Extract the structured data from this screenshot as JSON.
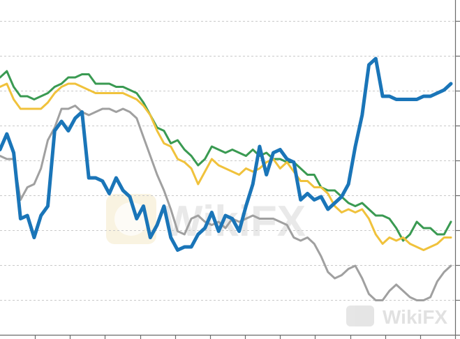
{
  "watermark": {
    "text": "WikiFX",
    "footer_text": "WikiFX"
  },
  "chart_data": {
    "type": "line",
    "title": "",
    "xlabel": "",
    "ylabel": "",
    "grid": true,
    "y_gridlines": 9,
    "x_ticks": 13,
    "x_points": 67,
    "ylim": [
      0,
      100
    ],
    "series": [
      {
        "color": "#3a9a52",
        "width": 3,
        "values": [
          82,
          84,
          79,
          76,
          76,
          75,
          76,
          77,
          79,
          80,
          82,
          82,
          83,
          83,
          80,
          80,
          80,
          79,
          79,
          78,
          77,
          74,
          70,
          66,
          65,
          61,
          62,
          59,
          57,
          54,
          56,
          60,
          59,
          58,
          59,
          58,
          57,
          59,
          57,
          58,
          56,
          56,
          55,
          55,
          53,
          51,
          51,
          47,
          46,
          46,
          44,
          42,
          41,
          42,
          40,
          38,
          38,
          37,
          34,
          30,
          32,
          36,
          34,
          34,
          32,
          32,
          36
        ]
      },
      {
        "color": "#f0c23c",
        "width": 3,
        "values": [
          79,
          80,
          75,
          72,
          72,
          72,
          72,
          74,
          77,
          79,
          80,
          80,
          79,
          78,
          77,
          77,
          77,
          77,
          77,
          76,
          75,
          73,
          70,
          65,
          61,
          60,
          56,
          55,
          53,
          48,
          52,
          56,
          54,
          53,
          52,
          51,
          53,
          52,
          53,
          55,
          56,
          53,
          55,
          52,
          49,
          49,
          47,
          47,
          45,
          41,
          39,
          40,
          39,
          40,
          37,
          32,
          29,
          31,
          30,
          31,
          29,
          28,
          27,
          28,
          29,
          31,
          31
        ]
      },
      {
        "color": "#a0a0a0",
        "width": 3,
        "values": [
          57,
          56,
          56,
          43,
          47,
          48,
          53,
          62,
          66,
          72,
          72,
          73,
          71,
          70,
          71,
          72,
          72,
          71,
          72,
          71,
          69,
          63,
          57,
          51,
          46,
          40,
          33,
          32,
          37,
          38,
          36,
          35,
          36,
          34,
          37,
          36,
          37,
          38,
          37,
          37,
          37,
          36,
          35,
          31,
          30,
          31,
          29,
          25,
          20,
          18,
          19,
          21,
          22,
          18,
          13,
          11,
          11,
          14,
          16,
          14,
          12,
          11,
          11,
          12,
          17,
          20,
          22
        ]
      },
      {
        "color": "#1a75b8",
        "width": 5,
        "values": [
          59,
          64,
          58,
          37,
          38,
          31,
          38,
          41,
          65,
          68,
          65,
          69,
          71,
          50,
          50,
          49,
          45,
          50,
          46,
          44,
          37,
          41,
          31,
          35,
          41,
          31,
          27,
          28,
          28,
          32,
          34,
          39,
          33,
          38,
          37,
          33,
          41,
          48,
          60,
          51,
          58,
          59,
          56,
          55,
          43,
          45,
          43,
          44,
          40,
          42,
          44,
          48,
          60,
          70,
          86,
          88,
          76,
          76,
          75,
          75,
          75,
          75,
          76,
          76,
          77,
          78,
          80
        ]
      }
    ]
  }
}
